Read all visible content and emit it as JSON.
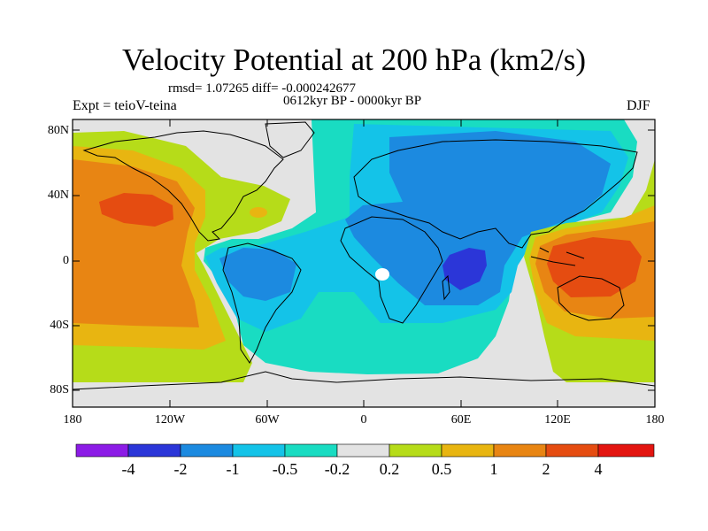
{
  "title": "Velocity Potential at 200 hPa (km2/s)",
  "stats_line": "rmsd= 1.07265 diff= -0.000242677",
  "period_line": "0612kyr BP - 0000kyr BP",
  "left_label": "Expt = teioV-teina",
  "right_label": "DJF",
  "lat_labels": [
    "80N",
    "40N",
    "0",
    "40S",
    "80S"
  ],
  "lon_labels": [
    "180",
    "120W",
    "60W",
    "0",
    "60E",
    "120E",
    "180"
  ],
  "colorbar": {
    "colors": [
      "#8c1ce6",
      "#2b36d8",
      "#1c8ae0",
      "#14c3e8",
      "#19dcc2",
      "#e3e3e3",
      "#b6dc19",
      "#e8b511",
      "#e88513",
      "#e54c11",
      "#e31510"
    ],
    "labels": [
      "-4",
      "-2",
      "-1",
      "-0.5",
      "-0.2",
      "0.2",
      "0.5",
      "1",
      "2",
      "4"
    ]
  },
  "chart_data": {
    "type": "map",
    "title": "Velocity Potential at 200 hPa (km2/s)",
    "projection": "cylindrical equidistant",
    "lon_range": [
      -180,
      180
    ],
    "lat_range": [
      -90,
      90
    ],
    "contour_levels": [
      -4,
      -2,
      -1,
      -0.5,
      -0.2,
      0.2,
      0.5,
      1,
      2,
      4
    ],
    "features": [
      {
        "name": "central Pacific positive maximum",
        "lon": -145,
        "lat": 30,
        "value_range": "2 to 4"
      },
      {
        "name": "western Pacific / maritime continent maximum",
        "lon": 140,
        "lat": 0,
        "value_range": "2 to 4"
      },
      {
        "name": "Indian Ocean / East Africa minimum",
        "lon": 55,
        "lat": -5,
        "value_range": "-2 to -4"
      },
      {
        "name": "South America negative region",
        "lon": -60,
        "lat": -10,
        "value_range": "-1 to -2"
      },
      {
        "name": "Eurasia negative region",
        "lon": 60,
        "lat": 40,
        "value_range": "-1 to -2"
      }
    ],
    "rmsd": 1.07265,
    "diff": -0.000242677
  }
}
